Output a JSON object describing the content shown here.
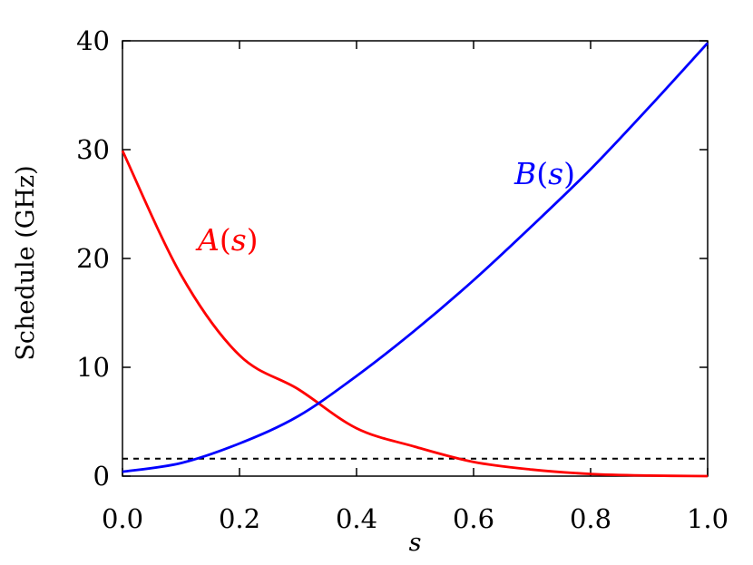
{
  "chart_data": {
    "type": "line",
    "xlabel": "s",
    "ylabel": "Schedule (GHz)",
    "xlim": [
      0.0,
      1.0
    ],
    "ylim": [
      0,
      40
    ],
    "xticks": [
      "0.0",
      "0.2",
      "0.4",
      "0.6",
      "0.8",
      "1.0"
    ],
    "yticks": [
      "0",
      "10",
      "20",
      "30",
      "40"
    ],
    "grid": false,
    "x": [
      0.0,
      0.1,
      0.2,
      0.3,
      0.4,
      0.5,
      0.6,
      0.7,
      0.8,
      0.9,
      1.0
    ],
    "series": [
      {
        "name": "A(s)",
        "name_prefix": "A",
        "name_arg": "s",
        "color": "#ff0000",
        "values": [
          29.9,
          18.5,
          11.1,
          8.0,
          4.4,
          2.7,
          1.3,
          0.6,
          0.2,
          0.05,
          0.0
        ]
      },
      {
        "name": "B(s)",
        "name_prefix": "B",
        "name_arg": "s",
        "color": "#0000ff",
        "values": [
          0.4,
          1.2,
          3.0,
          5.5,
          9.2,
          13.4,
          18.0,
          23.0,
          28.2,
          33.9,
          39.8
        ]
      }
    ],
    "reference_line": {
      "y": 1.6,
      "style": "dashed",
      "color": "#000000"
    }
  }
}
